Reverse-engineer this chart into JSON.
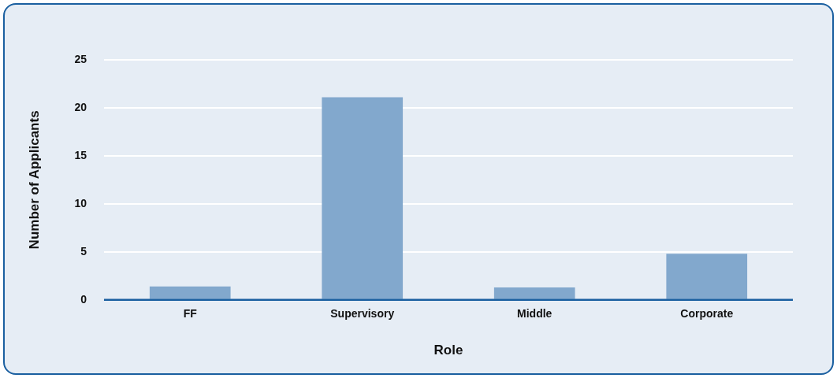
{
  "chart_data": {
    "type": "bar",
    "xlabel": "Role",
    "ylabel": "Number of Applicants",
    "categories": [
      "FF",
      "Supervisory",
      "Middle",
      "Corporate"
    ],
    "values": [
      1.4,
      21.1,
      1.3,
      4.8
    ],
    "color": "#82a8cd",
    "ylim": [
      0,
      25
    ],
    "yticks": [
      0,
      5,
      10,
      15,
      20,
      25
    ],
    "grid": "y",
    "legend": false
  }
}
